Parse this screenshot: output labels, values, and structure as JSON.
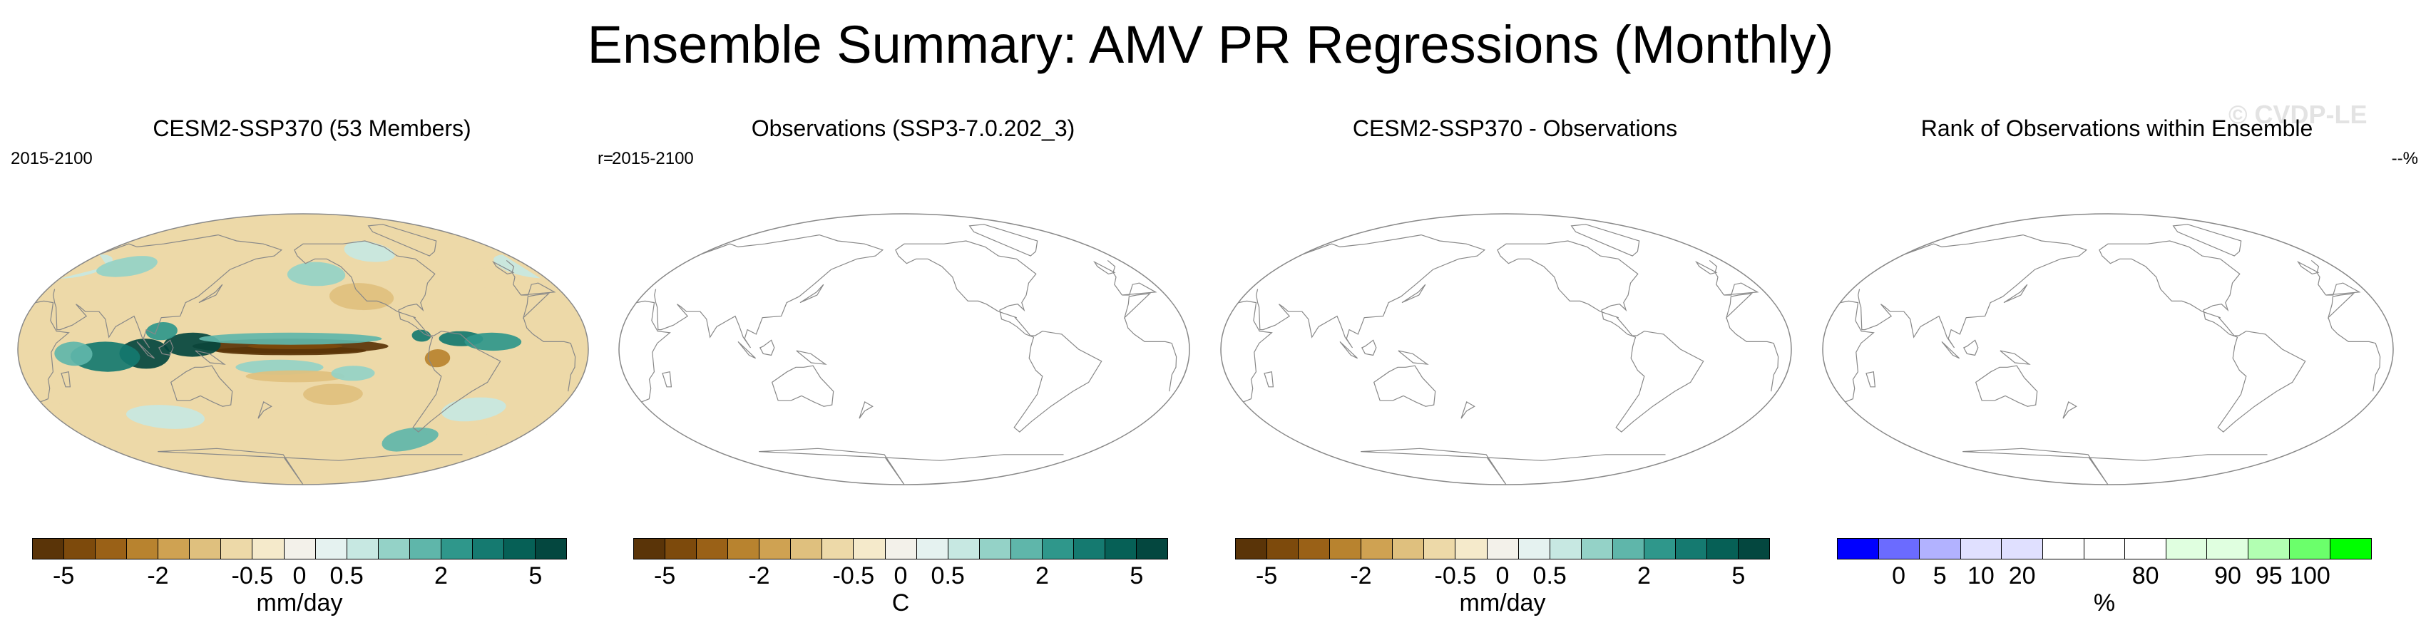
{
  "title": "Ensemble Summary: AMV PR Regressions (Monthly)",
  "watermark": "© CVDP-LE",
  "colors": {
    "brbg": [
      "#5a3408",
      "#7d4a0c",
      "#9a6117",
      "#b8832f",
      "#cfa252",
      "#dfc07e",
      "#edd9a8",
      "#f5eacb",
      "#f3f1ea",
      "#e5f2f0",
      "#c7e8e2",
      "#94d2c7",
      "#5fb6aa",
      "#2f978b",
      "#157a70",
      "#066056",
      "#04473f"
    ],
    "rank": [
      "#0000ff",
      "#6b6bff",
      "#b2b2ff",
      "#e0e0ff",
      "#e0e0ff",
      "#ffffff",
      "#ffffff",
      "#ffffff",
      "#e0ffe0",
      "#e0ffe0",
      "#b2ffb2",
      "#6bff6b",
      "#00ff00"
    ],
    "land": "#888888",
    "ellipse": "#888888"
  },
  "panels": [
    {
      "title": "CESM2-SSP370 (53 Members)",
      "left_label": "2015-2100",
      "right_label": "r=",
      "has_field": true,
      "colorbar": {
        "palette": "brbg",
        "ticks": [
          "-5",
          "-2",
          "-0.5",
          "0",
          "0.5",
          "2",
          "5"
        ],
        "tick_bins": [
          1,
          4,
          7,
          8.5,
          10,
          13,
          16
        ],
        "unit": "mm/day"
      }
    },
    {
      "title": "Observations (SSP3-7.0.202_3)",
      "left_label": "2015-2100",
      "right_label": "",
      "has_field": false,
      "colorbar": {
        "palette": "brbg",
        "ticks": [
          "-5",
          "-2",
          "-0.5",
          "0",
          "0.5",
          "2",
          "5"
        ],
        "tick_bins": [
          1,
          4,
          7,
          8.5,
          10,
          13,
          16
        ],
        "unit": "C"
      }
    },
    {
      "title": "CESM2-SSP370 - Observations",
      "left_label": "",
      "right_label": "",
      "has_field": false,
      "colorbar": {
        "palette": "brbg",
        "ticks": [
          "-5",
          "-2",
          "-0.5",
          "0",
          "0.5",
          "2",
          "5"
        ],
        "tick_bins": [
          1,
          4,
          7,
          8.5,
          10,
          13,
          16
        ],
        "unit": "mm/day"
      }
    },
    {
      "title": "Rank of Observations within Ensemble",
      "left_label": "",
      "right_label": "--%",
      "has_field": false,
      "colorbar": {
        "palette": "rank",
        "ticks": [
          "0",
          "5",
          "10",
          "20",
          "80",
          "90",
          "95",
          "100"
        ],
        "tick_bins": [
          1.5,
          2.5,
          3.5,
          4.5,
          7.5,
          9.5,
          10.5,
          11.5
        ],
        "unit": "%"
      }
    }
  ],
  "chart_data": [
    {
      "type": "heatmap",
      "title": "CESM2-SSP370 (53 Members)",
      "period": "2015-2100",
      "variable": "AMV PR regression",
      "units": "mm/day",
      "colorbar_ticks": [
        -5,
        -2,
        -0.5,
        0,
        0.5,
        2,
        5
      ],
      "pattern_correlation": "r="
    },
    {
      "type": "heatmap",
      "title": "Observations (SSP3-7.0.202_3)",
      "period": "2015-2100",
      "units": "C",
      "colorbar_ticks": [
        -5,
        -2,
        -0.5,
        0,
        0.5,
        2,
        5
      ]
    },
    {
      "type": "heatmap",
      "title": "CESM2-SSP370 - Observations",
      "units": "mm/day",
      "colorbar_ticks": [
        -5,
        -2,
        -0.5,
        0,
        0.5,
        2,
        5
      ]
    },
    {
      "type": "heatmap",
      "title": "Rank of Observations within Ensemble",
      "units": "%",
      "colorbar_ticks": [
        0,
        5,
        10,
        20,
        80,
        90,
        95,
        100
      ],
      "value": "--%"
    }
  ]
}
